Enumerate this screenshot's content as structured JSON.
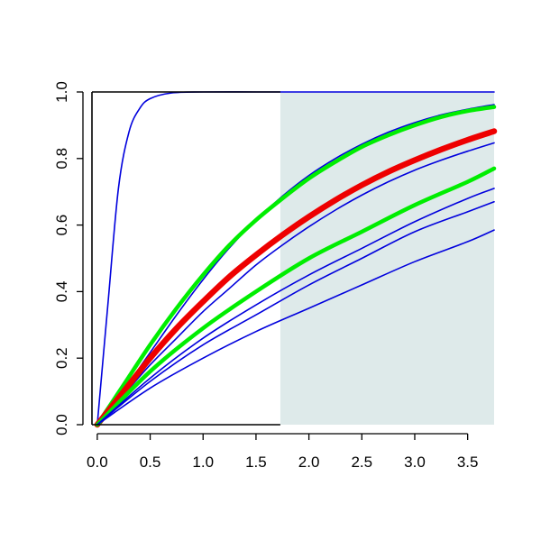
{
  "chart_data": {
    "type": "line",
    "title": "",
    "xlabel": "",
    "ylabel": "",
    "xlim": [
      -0.05,
      3.75
    ],
    "ylim": [
      0,
      1
    ],
    "x_ticks": [
      "0.0",
      "0.5",
      "1.0",
      "1.5",
      "2.0",
      "2.5",
      "3.0",
      "3.5"
    ],
    "y_ticks": [
      "0.0",
      "0.2",
      "0.4",
      "0.6",
      "0.8",
      "1.0"
    ],
    "shaded_region": {
      "x_start": 1.73,
      "x_end": 3.75,
      "color": "#deeaea"
    },
    "grid": false,
    "legend": "none",
    "series": [
      {
        "color": "#0000dd",
        "width": "thin",
        "x": [
          0,
          0.1,
          0.2,
          0.3,
          0.4,
          0.5,
          0.7,
          1.0,
          1.5,
          2.0,
          3.0,
          3.75
        ],
        "y": [
          0,
          0.36,
          0.71,
          0.88,
          0.95,
          0.98,
          0.997,
          1.0,
          1.0,
          1.0,
          1.0,
          1.0
        ]
      },
      {
        "color": "#0000dd",
        "width": "thin",
        "x": [
          0,
          0.25,
          0.5,
          0.75,
          1.0,
          1.25,
          1.5,
          1.75,
          2.0,
          2.25,
          2.5,
          2.75,
          3.0,
          3.25,
          3.5,
          3.75
        ],
        "y": [
          0,
          0.104,
          0.217,
          0.33,
          0.436,
          0.532,
          0.615,
          0.687,
          0.749,
          0.8,
          0.843,
          0.879,
          0.908,
          0.931,
          0.948,
          0.962
        ]
      },
      {
        "color": "#00ee00",
        "width": "thick",
        "x": [
          0,
          0.25,
          0.5,
          0.75,
          1.0,
          1.25,
          1.5,
          1.75,
          2.0,
          2.25,
          2.5,
          2.75,
          3.0,
          3.25,
          3.5,
          3.75
        ],
        "y": [
          0,
          0.12,
          0.24,
          0.35,
          0.45,
          0.54,
          0.615,
          0.68,
          0.74,
          0.79,
          0.835,
          0.87,
          0.9,
          0.925,
          0.943,
          0.955
        ]
      },
      {
        "color": "#0000dd",
        "width": "thin",
        "x": [
          0,
          0.25,
          0.5,
          0.75,
          1.0,
          1.25,
          1.5,
          1.75,
          2.0,
          2.25,
          2.5,
          2.75,
          3.0,
          3.25,
          3.5,
          3.75
        ],
        "y": [
          0,
          0.09,
          0.18,
          0.26,
          0.34,
          0.41,
          0.48,
          0.54,
          0.595,
          0.645,
          0.69,
          0.73,
          0.765,
          0.795,
          0.822,
          0.847
        ]
      },
      {
        "color": "#ee0000",
        "width": "xthick",
        "x": [
          0,
          0.25,
          0.5,
          0.75,
          1.0,
          1.25,
          1.5,
          1.75,
          2.0,
          2.25,
          2.5,
          2.75,
          3.0,
          3.25,
          3.5,
          3.75
        ],
        "y": [
          0,
          0.1,
          0.2,
          0.29,
          0.37,
          0.445,
          0.51,
          0.57,
          0.625,
          0.675,
          0.72,
          0.76,
          0.795,
          0.827,
          0.856,
          0.882
        ]
      },
      {
        "color": "#00ee00",
        "width": "thick",
        "x": [
          0,
          0.5,
          1.0,
          1.5,
          2.0,
          2.5,
          3.0,
          3.5,
          3.75
        ],
        "y": [
          0,
          0.16,
          0.29,
          0.4,
          0.5,
          0.58,
          0.66,
          0.73,
          0.77
        ]
      },
      {
        "color": "#0000dd",
        "width": "thin",
        "x": [
          0,
          0.5,
          1.0,
          1.5,
          2.0,
          2.5,
          3.0,
          3.5,
          3.75
        ],
        "y": [
          0,
          0.14,
          0.26,
          0.36,
          0.45,
          0.53,
          0.61,
          0.68,
          0.71
        ]
      },
      {
        "color": "#0000dd",
        "width": "thin",
        "x": [
          0,
          0.5,
          1.0,
          1.5,
          2.0,
          2.5,
          3.0,
          3.5,
          3.75
        ],
        "y": [
          0,
          0.13,
          0.24,
          0.33,
          0.42,
          0.5,
          0.58,
          0.64,
          0.67
        ]
      },
      {
        "color": "#0000dd",
        "width": "thin",
        "x": [
          0,
          0.5,
          1.0,
          1.5,
          2.0,
          2.5,
          3.0,
          3.5,
          3.75
        ],
        "y": [
          0,
          0.11,
          0.2,
          0.28,
          0.35,
          0.42,
          0.49,
          0.55,
          0.585
        ]
      }
    ]
  }
}
